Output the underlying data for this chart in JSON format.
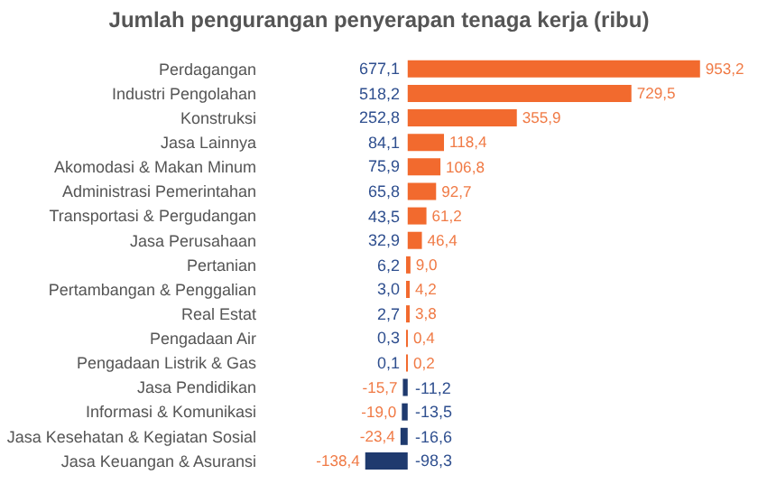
{
  "chart_data": {
    "type": "bar",
    "orientation": "horizontal",
    "title": "Jumlah pengurangan penyerapan tenaga kerja (ribu)",
    "categories": [
      "Perdagangan",
      "Industri Pengolahan",
      "Konstruksi",
      "Jasa Lainnya",
      "Akomodasi & Makan Minum",
      "Administrasi Pemerintahan",
      "Transportasi & Pergudangan",
      "Jasa Perusahaan",
      "Pertanian",
      "Pertambangan & Penggalian",
      "Real Estat",
      "Pengadaan Air",
      "Pengadaan Listrik & Gas",
      "Jasa Pendidikan",
      "Informasi & Komunikasi",
      "Jasa Kesehatan & Kegiatan Sosial",
      "Jasa Keuangan & Asuransi"
    ],
    "values": [
      953.2,
      729.5,
      355.9,
      118.4,
      106.8,
      92.7,
      61.2,
      46.4,
      9.0,
      4.2,
      3.8,
      0.4,
      0.2,
      -15.7,
      -19.0,
      -23.4,
      -138.4
    ],
    "value_labels": [
      "953,2",
      "729,5",
      "355,9",
      "118,4",
      "106,8",
      "92,7",
      "61,2",
      "46,4",
      "9,0",
      "4,2",
      "3,8",
      "0,4",
      "0,2",
      "-15,7",
      "-19,0",
      "-23,4",
      "-138,4"
    ],
    "colors": [
      "#f26a2e",
      "#f26a2e",
      "#f26a2e",
      "#f26a2e",
      "#f26a2e",
      "#f26a2e",
      "#f26a2e",
      "#f26a2e",
      "#f26a2e",
      "#f26a2e",
      "#f26a2e",
      "#f26a2e",
      "#f26a2e",
      "#1f3a6e",
      "#1f3a6e",
      "#1f3a6e",
      "#1f3a6e"
    ],
    "annotations": [
      "677,1",
      "518,2",
      "252,8",
      "84,1",
      "75,9",
      "65,8",
      "43,5",
      "32,9",
      "6,2",
      "3,0",
      "2,7",
      "0,3",
      "0,1",
      "-11,2",
      "-13,5",
      "-16,6",
      "-98,3"
    ]
  }
}
